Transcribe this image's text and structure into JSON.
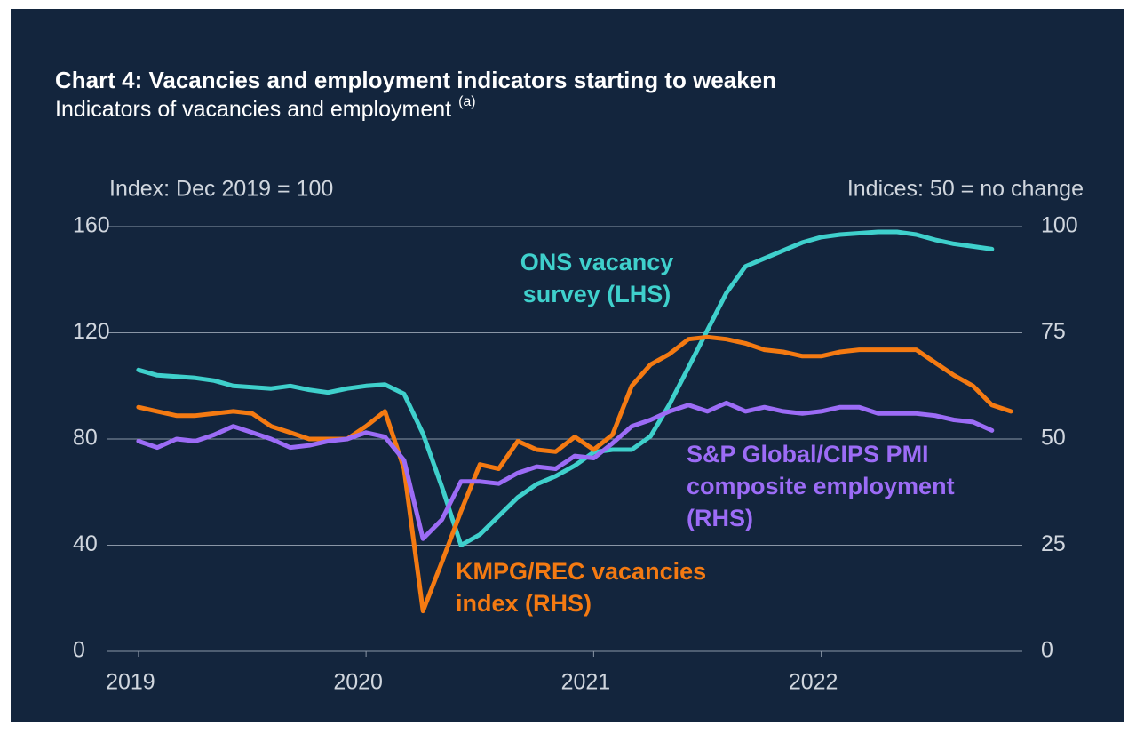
{
  "chart_data": {
    "type": "line",
    "title": "Chart 4: Vacancies and employment indicators starting to weaken",
    "subtitle": "Indicators of vacancies and employment",
    "subtitle_note": "(a)",
    "ylabel": "Index: Dec 2019 = 100",
    "y2label": "Indices: 50 = no change",
    "xlim": [
      2018.86,
      2022.86
    ],
    "xticks": [
      2019,
      2020,
      2021,
      2022
    ],
    "ylim": [
      0,
      160
    ],
    "yticks": [
      0,
      40,
      80,
      120,
      160
    ],
    "y2lim": [
      0,
      100
    ],
    "y2ticks": [
      0,
      25,
      50,
      75,
      100
    ],
    "grid": true,
    "x": [
      2019,
      2019.083,
      2019.167,
      2019.25,
      2019.333,
      2019.417,
      2019.5,
      2019.583,
      2019.667,
      2019.75,
      2019.833,
      2019.917,
      2020,
      2020.083,
      2020.167,
      2020.25,
      2020.333,
      2020.417,
      2020.5,
      2020.583,
      2020.667,
      2020.75,
      2020.833,
      2020.917,
      2021,
      2021.083,
      2021.167,
      2021.25,
      2021.333,
      2021.417,
      2021.5,
      2021.583,
      2021.667,
      2021.75,
      2021.833,
      2021.917,
      2022,
      2022.083,
      2022.167,
      2022.25,
      2022.333,
      2022.417,
      2022.5,
      2022.583,
      2022.667,
      2022.75,
      2022.833
    ],
    "series": [
      {
        "label": [
          "ONS vacancy",
          "survey (LHS)"
        ],
        "color": "#3fd0cc",
        "axis": "y",
        "values": [
          106,
          104,
          103.5,
          103,
          102,
          100,
          99.5,
          99,
          100,
          98.5,
          97.5,
          99,
          100,
          100.5,
          97,
          82,
          62,
          40,
          44,
          51,
          58,
          63,
          66,
          70,
          75,
          76,
          76,
          81,
          93,
          107,
          121,
          135,
          145,
          148,
          151,
          154,
          156,
          157,
          157.5,
          158,
          158,
          157,
          155,
          153.5,
          152.5,
          151.5,
          null
        ]
      },
      {
        "label": [
          "KMPG/REC vacancies",
          "index (RHS)"
        ],
        "color": "#f47a12",
        "axis": "y2",
        "values": [
          57.5,
          56.5,
          55.5,
          55.5,
          56,
          56.5,
          56,
          53,
          51.5,
          50,
          50,
          50,
          53,
          56.5,
          43,
          9.5,
          21,
          33,
          44,
          43,
          49.5,
          47.5,
          47,
          50.5,
          47.5,
          51,
          62.5,
          67.5,
          70,
          73.5,
          74,
          73.5,
          72.5,
          71,
          70.5,
          69.5,
          69.5,
          70.5,
          71,
          71,
          71,
          71,
          68,
          65,
          62.5,
          58,
          56.5
        ]
      },
      {
        "label": [
          "S&P Global/CIPS PMI",
          "composite employment",
          "(RHS)"
        ],
        "color": "#9c6cf6",
        "axis": "y2",
        "values": [
          49.5,
          48,
          50,
          49.5,
          51,
          53,
          51.5,
          50,
          48,
          48.5,
          49.5,
          50,
          51.5,
          50.5,
          45,
          26.5,
          31,
          40,
          40,
          39.5,
          42,
          43.5,
          43,
          46,
          45.5,
          49,
          53,
          54.5,
          56.5,
          58,
          56.5,
          58.5,
          56.5,
          57.5,
          56.5,
          56,
          56.5,
          57.5,
          57.5,
          56,
          56,
          56,
          55.5,
          54.5,
          54,
          52,
          null
        ]
      }
    ]
  }
}
